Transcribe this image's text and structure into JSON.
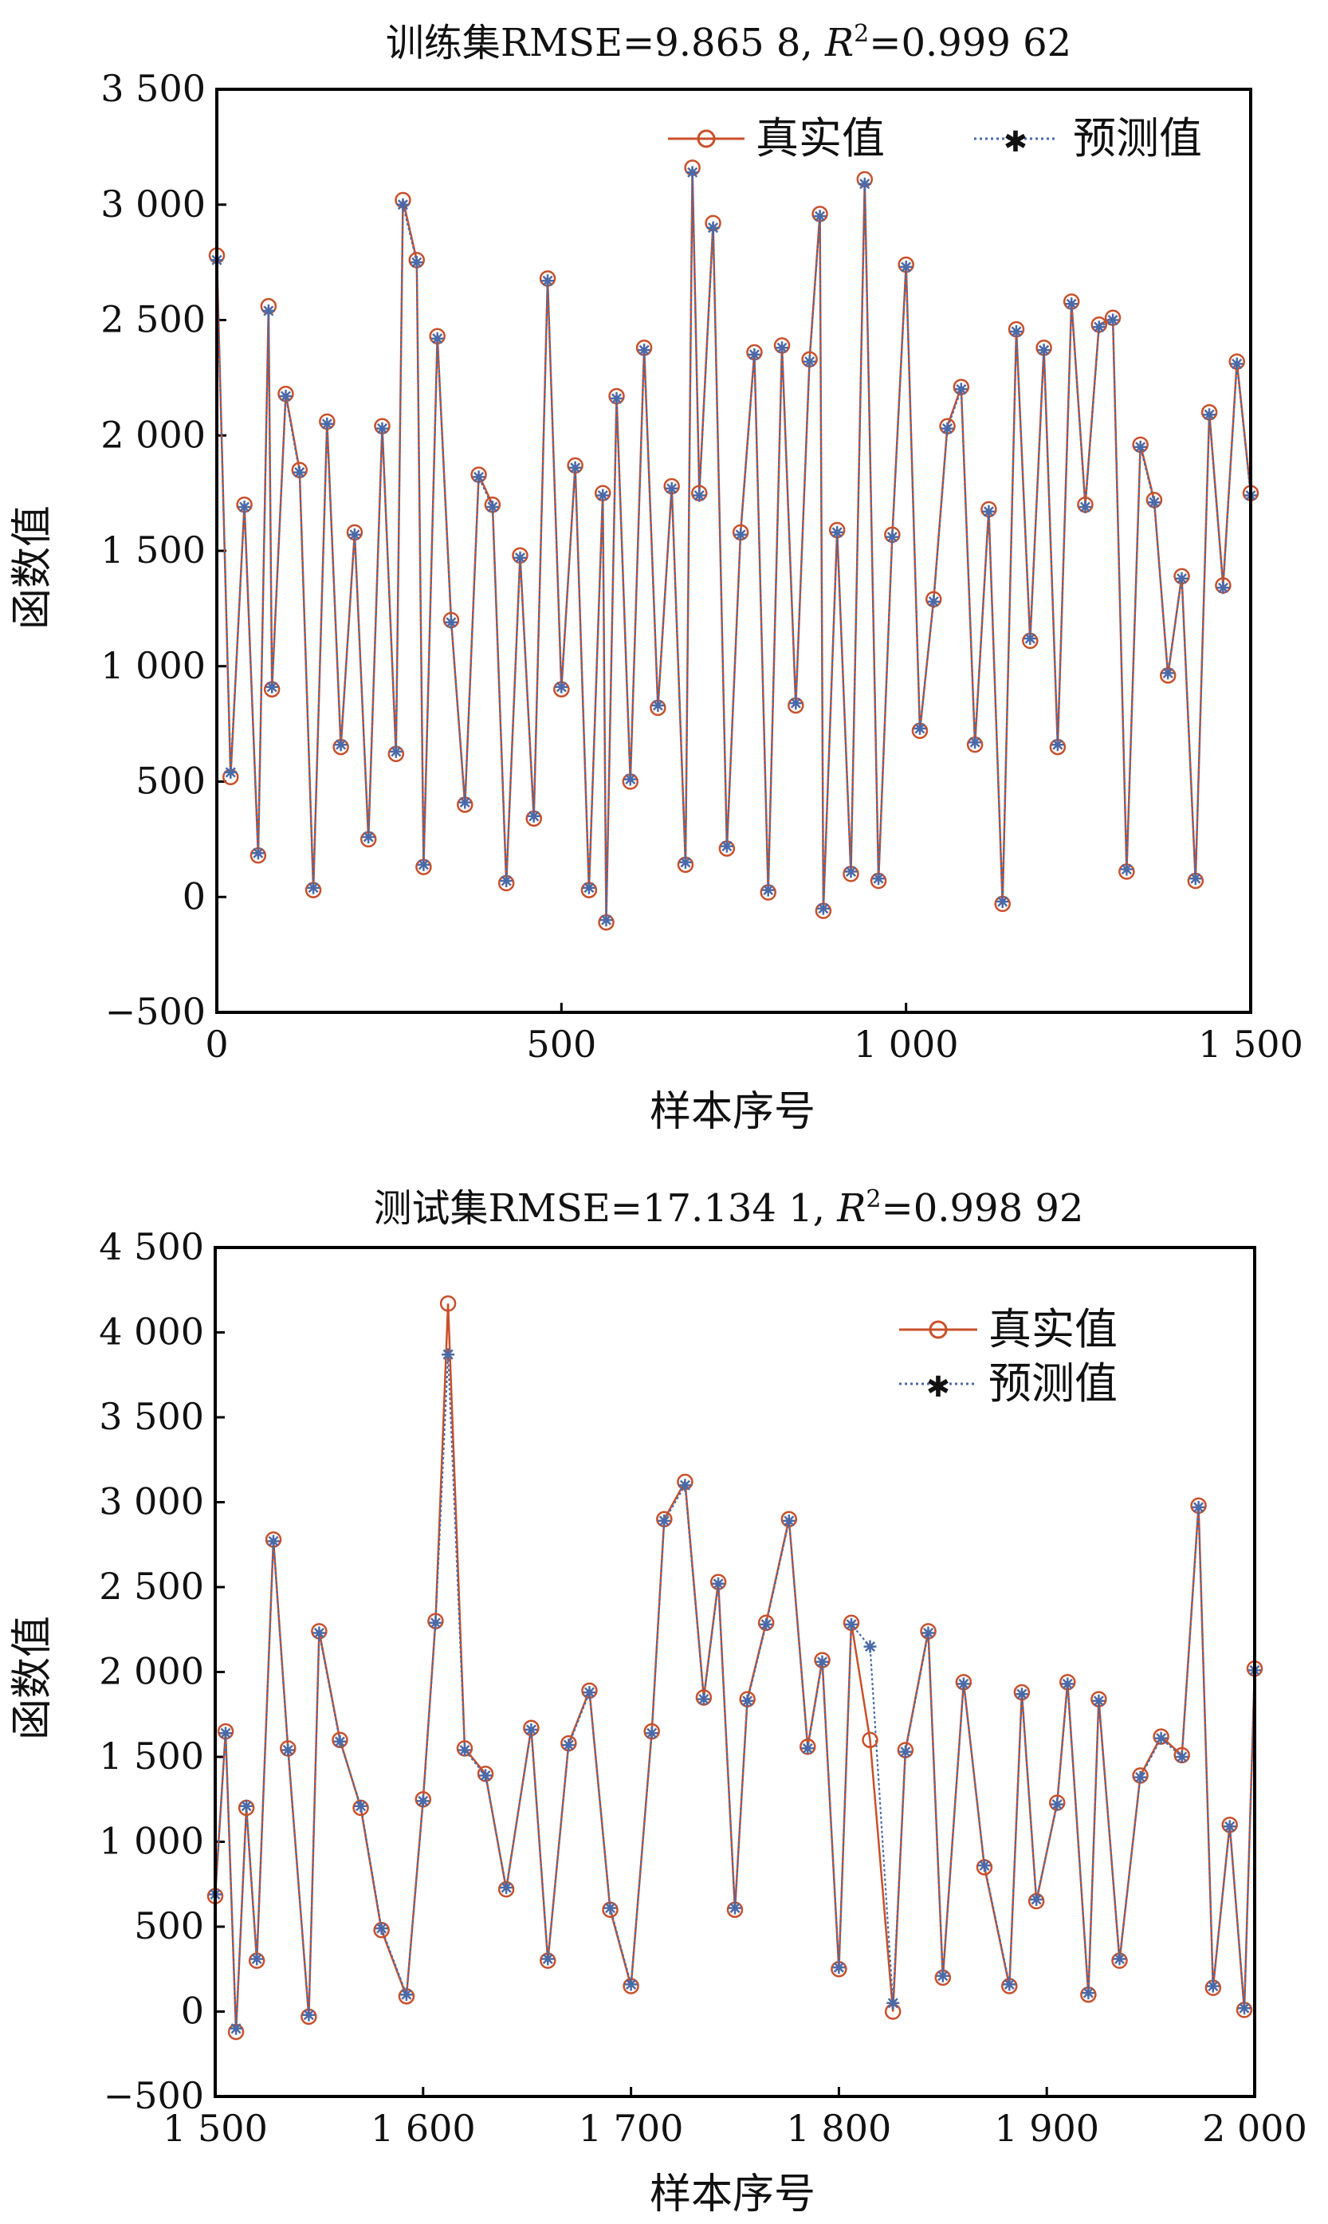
{
  "charts": [
    {
      "title": "训练集RMSE=9.865 8, R²=0.999 62",
      "title_parts": {
        "prefix": "训练集RMSE=9.865 8, ",
        "r_symbol": "R",
        "r_exponent": "2",
        "r_value": "=0.999 62"
      },
      "ylabel": "函数值",
      "xlabel": "样本序号",
      "legend": {
        "actual": "真实值",
        "predicted": "预测值"
      },
      "xticks": [
        "0",
        "500",
        "1 000",
        "1 500"
      ],
      "yticks": [
        "−500",
        "0",
        "500",
        "1 000",
        "1 500",
        "2 000",
        "2 500",
        "3 000",
        "3 500"
      ]
    },
    {
      "title": "测试集RMSE=17.134 1, R²=0.998 92",
      "title_parts": {
        "prefix": "测试集RMSE=17.134 1, ",
        "r_symbol": "R",
        "r_exponent": "2",
        "r_value": "=0.998 92"
      },
      "ylabel": "函数值",
      "xlabel": "样本序号",
      "legend": {
        "actual": "真实值",
        "predicted": "预测值"
      },
      "xticks": [
        "1 500",
        "1 600",
        "1 700",
        "1 800",
        "1 900",
        "2 000"
      ],
      "yticks": [
        "−500",
        "0",
        "500",
        "1 000",
        "1 500",
        "2 000",
        "2 500",
        "3 000",
        "3 500",
        "4 000",
        "4 500"
      ]
    }
  ],
  "colors": {
    "actual": "#c8502a",
    "predicted": "#4a6aa8",
    "axes": "#000000"
  },
  "chart_data": [
    {
      "type": "line",
      "title": "训练集RMSE=9.865 8, R²=0.999 62",
      "xlabel": "样本序号",
      "ylabel": "函数值",
      "xlim": [
        0,
        1500
      ],
      "ylim": [
        -500,
        3500
      ],
      "xticks": [
        0,
        500,
        1000,
        1500
      ],
      "yticks": [
        -500,
        0,
        500,
        1000,
        1500,
        2000,
        2500,
        3000,
        3500
      ],
      "grid": false,
      "legend_position": "top-right",
      "x": [
        0,
        20,
        40,
        60,
        75,
        80,
        100,
        120,
        140,
        160,
        180,
        200,
        220,
        240,
        260,
        270,
        290,
        300,
        320,
        340,
        360,
        380,
        400,
        420,
        440,
        460,
        480,
        500,
        520,
        540,
        560,
        565,
        580,
        600,
        620,
        640,
        660,
        680,
        690,
        700,
        720,
        740,
        760,
        780,
        800,
        820,
        840,
        860,
        875,
        880,
        900,
        920,
        940,
        960,
        980,
        1000,
        1020,
        1040,
        1060,
        1080,
        1100,
        1120,
        1140,
        1160,
        1180,
        1200,
        1220,
        1240,
        1260,
        1280,
        1300,
        1320,
        1340,
        1360,
        1380,
        1400,
        1420,
        1440,
        1460,
        1480,
        1500
      ],
      "series": [
        {
          "name": "真实值",
          "marker": "circle",
          "values": [
            2780,
            520,
            1700,
            180,
            2560,
            900,
            2180,
            1850,
            30,
            2060,
            650,
            1580,
            250,
            2040,
            620,
            3020,
            2760,
            130,
            2430,
            1200,
            400,
            1830,
            1700,
            60,
            1480,
            340,
            2680,
            900,
            1870,
            30,
            1750,
            -110,
            2170,
            500,
            2380,
            820,
            1780,
            140,
            3160,
            1750,
            2920,
            210,
            1580,
            2360,
            20,
            2390,
            830,
            2330,
            2960,
            -60,
            1590,
            100,
            3110,
            70,
            1570,
            2740,
            720,
            1290,
            2040,
            2210,
            660,
            1680,
            -30,
            2460,
            1110,
            2380,
            650,
            2580,
            1700,
            2480,
            2510,
            110,
            1960,
            1720,
            960,
            1390,
            70,
            2100,
            1350,
            2320,
            1750
          ]
        },
        {
          "name": "预测值",
          "marker": "star",
          "values": [
            2760,
            540,
            1690,
            190,
            2540,
            910,
            2170,
            1840,
            40,
            2050,
            660,
            1570,
            260,
            2030,
            630,
            3000,
            2750,
            140,
            2420,
            1190,
            410,
            1820,
            1690,
            70,
            1470,
            350,
            2670,
            910,
            1860,
            40,
            1740,
            -100,
            2160,
            510,
            2370,
            830,
            1770,
            150,
            3140,
            1740,
            2900,
            220,
            1570,
            2350,
            30,
            2380,
            840,
            2320,
            2950,
            -50,
            1580,
            110,
            3090,
            80,
            1560,
            2730,
            730,
            1280,
            2030,
            2200,
            670,
            1670,
            -20,
            2450,
            1120,
            2370,
            660,
            2570,
            1690,
            2470,
            2500,
            120,
            1950,
            1710,
            970,
            1380,
            80,
            2090,
            1340,
            2310,
            1740
          ]
        }
      ]
    },
    {
      "type": "line",
      "title": "测试集RMSE=17.134 1, R²=0.998 92",
      "xlabel": "样本序号",
      "ylabel": "函数值",
      "xlim": [
        1500,
        2000
      ],
      "ylim": [
        -500,
        4500
      ],
      "xticks": [
        1500,
        1600,
        1700,
        1800,
        1900,
        2000
      ],
      "yticks": [
        -500,
        0,
        500,
        1000,
        1500,
        2000,
        2500,
        3000,
        3500,
        4000,
        4500
      ],
      "grid": false,
      "legend_position": "top-right",
      "x": [
        1500,
        1505,
        1510,
        1515,
        1520,
        1528,
        1535,
        1545,
        1550,
        1560,
        1570,
        1580,
        1592,
        1600,
        1606,
        1612,
        1620,
        1630,
        1640,
        1652,
        1660,
        1670,
        1680,
        1690,
        1700,
        1710,
        1716,
        1726,
        1735,
        1742,
        1750,
        1756,
        1765,
        1776,
        1785,
        1792,
        1800,
        1806,
        1815,
        1826,
        1832,
        1843,
        1850,
        1860,
        1870,
        1882,
        1888,
        1895,
        1905,
        1910,
        1920,
        1925,
        1935,
        1945,
        1955,
        1965,
        1973,
        1980,
        1988,
        1995,
        2000
      ],
      "series": [
        {
          "name": "真实值",
          "marker": "circle",
          "values": [
            680,
            1650,
            -120,
            1200,
            300,
            2780,
            1550,
            -30,
            2240,
            1600,
            1200,
            480,
            90,
            1250,
            2300,
            4170,
            1550,
            1400,
            720,
            1670,
            300,
            1580,
            1890,
            600,
            150,
            1650,
            2900,
            3120,
            1850,
            2530,
            600,
            1840,
            2290,
            2900,
            1560,
            2070,
            250,
            2290,
            1600,
            0,
            1540,
            2240,
            200,
            1940,
            850,
            150,
            1880,
            650,
            1230,
            1940,
            100,
            1840,
            300,
            1390,
            1620,
            1510,
            2980,
            140,
            1100,
            10,
            2020
          ]
        },
        {
          "name": "预测值",
          "marker": "star",
          "values": [
            690,
            1640,
            -100,
            1210,
            310,
            2770,
            1540,
            -20,
            2230,
            1590,
            1210,
            490,
            100,
            1240,
            2290,
            3870,
            1540,
            1390,
            730,
            1660,
            310,
            1570,
            1880,
            610,
            160,
            1640,
            2890,
            3100,
            1840,
            2520,
            610,
            1830,
            2280,
            2890,
            1550,
            2060,
            260,
            2280,
            2150,
            50,
            1530,
            2230,
            210,
            1930,
            860,
            160,
            1870,
            660,
            1220,
            1930,
            110,
            1830,
            310,
            1380,
            1610,
            1500,
            2970,
            150,
            1090,
            20,
            2010
          ]
        }
      ]
    }
  ]
}
